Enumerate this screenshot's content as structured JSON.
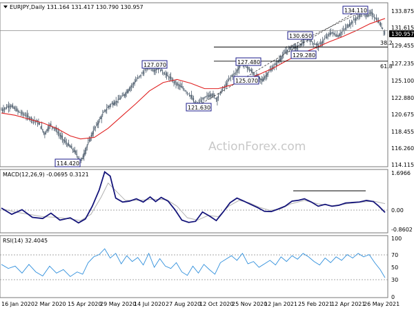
{
  "chart_data": [
    {
      "type": "candlestick",
      "symbol": "EURJPY",
      "timeframe": "Daily",
      "ohlc": {
        "open": "131.164",
        "high": "131.417",
        "low": "130.790",
        "close": "130.957"
      },
      "header_text": "EURJPY,Daily  131.164 131.417 130.790 130.957",
      "ylim": [
        114.115,
        134.9
      ],
      "y_ticks": [
        "133.875",
        "131.615",
        "130.957",
        "129.455",
        "127.235",
        "125.100",
        "122.880",
        "120.675",
        "118.455",
        "116.260",
        "114.115"
      ],
      "x_ticks": [
        "16 Jan 2020",
        "2 Mar 2020",
        "15 Apr 2020",
        "29 May 2020",
        "14 Jul 2020",
        "27 Aug 2020",
        "12 Oct 2020",
        "25 Nov 2020",
        "12 Jan 2021",
        "25 Feb 2021",
        "12 Apr 2021",
        "26 May 2021"
      ],
      "price_path": [
        [
          0,
          121.2
        ],
        [
          12,
          121.8
        ],
        [
          24,
          121.0
        ],
        [
          36,
          120.4
        ],
        [
          48,
          119.8
        ],
        [
          56,
          119.2
        ],
        [
          62,
          118.0
        ],
        [
          70,
          119.3
        ],
        [
          78,
          118.7
        ],
        [
          90,
          117.2
        ],
        [
          100,
          116.3
        ],
        [
          108,
          115.5
        ],
        [
          115,
          114.42
        ],
        [
          121,
          115.8
        ],
        [
          128,
          117.4
        ],
        [
          134,
          118.6
        ],
        [
          142,
          119.9
        ],
        [
          150,
          121.1
        ],
        [
          158,
          121.9
        ],
        [
          168,
          122.4
        ],
        [
          178,
          123.2
        ],
        [
          188,
          124.3
        ],
        [
          198,
          125.4
        ],
        [
          207,
          126.3
        ],
        [
          214,
          127.07
        ],
        [
          220,
          126.4
        ],
        [
          228,
          126.7
        ],
        [
          236,
          126.0
        ],
        [
          244,
          125.4
        ],
        [
          252,
          124.7
        ],
        [
          262,
          124.1
        ],
        [
          270,
          123.5
        ],
        [
          276,
          122.8
        ],
        [
          283,
          121.63
        ],
        [
          290,
          122.4
        ],
        [
          298,
          123.0
        ],
        [
          305,
          123.3
        ],
        [
          312,
          122.6
        ],
        [
          318,
          123.6
        ],
        [
          325,
          124.4
        ],
        [
          332,
          125.5
        ],
        [
          340,
          126.1
        ],
        [
          348,
          127.48
        ],
        [
          356,
          126.8
        ],
        [
          364,
          126.1
        ],
        [
          372,
          125.4
        ],
        [
          378,
          125.07
        ],
        [
          386,
          126.0
        ],
        [
          396,
          127.0
        ],
        [
          405,
          128.0
        ],
        [
          414,
          129.0
        ],
        [
          422,
          129.6
        ],
        [
          428,
          129.28
        ],
        [
          436,
          130.0
        ],
        [
          444,
          130.65
        ],
        [
          452,
          130.0
        ],
        [
          460,
          129.6
        ],
        [
          468,
          130.4
        ],
        [
          478,
          131.4
        ],
        [
          488,
          130.9
        ],
        [
          496,
          131.6
        ],
        [
          504,
          132.4
        ],
        [
          512,
          133.0
        ],
        [
          518,
          133.5
        ],
        [
          524,
          134.11
        ],
        [
          530,
          133.6
        ],
        [
          536,
          133.9
        ],
        [
          542,
          133.3
        ],
        [
          548,
          132.6
        ],
        [
          554,
          131.8
        ],
        [
          557,
          130.957
        ]
      ],
      "moving_average": [
        [
          0,
          120.8
        ],
        [
          20,
          120.5
        ],
        [
          40,
          120.0
        ],
        [
          60,
          119.5
        ],
        [
          80,
          118.8
        ],
        [
          100,
          117.8
        ],
        [
          115,
          117.4
        ],
        [
          135,
          117.6
        ],
        [
          155,
          118.8
        ],
        [
          175,
          120.4
        ],
        [
          195,
          122.0
        ],
        [
          215,
          123.7
        ],
        [
          235,
          124.8
        ],
        [
          255,
          125.2
        ],
        [
          275,
          124.7
        ],
        [
          295,
          124.0
        ],
        [
          315,
          124.0
        ],
        [
          335,
          124.5
        ],
        [
          355,
          125.2
        ],
        [
          375,
          125.9
        ],
        [
          395,
          126.7
        ],
        [
          415,
          127.7
        ],
        [
          435,
          128.6
        ],
        [
          455,
          129.3
        ],
        [
          475,
          130.1
        ],
        [
          495,
          130.8
        ],
        [
          515,
          131.6
        ],
        [
          535,
          132.5
        ],
        [
          557,
          133.2
        ]
      ],
      "price_labels": [
        "134.110",
        "130.650",
        "129.280",
        "127.480",
        "127.070",
        "125.070",
        "121.630",
        "114.420"
      ],
      "retracement_labels": [
        "38.2",
        "61.8"
      ],
      "watermark": "ActionForex.com"
    },
    {
      "type": "line",
      "indicator": "MACD",
      "title": "MACD(12,26,9) -0.0695 0.3121",
      "y_ticks": [
        "1.6966",
        "0.00",
        "-0.8602"
      ],
      "ylim": [
        -0.8602,
        1.6966
      ],
      "series": [
        {
          "values": [
            [
              0,
              0.12
            ],
            [
              15,
              -0.15
            ],
            [
              30,
              0.05
            ],
            [
              45,
              -0.28
            ],
            [
              60,
              -0.33
            ],
            [
              72,
              -0.1
            ],
            [
              85,
              -0.4
            ],
            [
              100,
              -0.3
            ],
            [
              112,
              -0.52
            ],
            [
              122,
              -0.35
            ],
            [
              132,
              0.2
            ],
            [
              142,
              0.9
            ],
            [
              150,
              1.68
            ],
            [
              158,
              1.5
            ],
            [
              166,
              0.55
            ],
            [
              176,
              0.38
            ],
            [
              186,
              0.42
            ],
            [
              196,
              0.52
            ],
            [
              206,
              0.38
            ],
            [
              216,
              0.6
            ],
            [
              224,
              0.4
            ],
            [
              232,
              0.58
            ],
            [
              242,
              0.42
            ],
            [
              252,
              0.05
            ],
            [
              262,
              -0.4
            ],
            [
              272,
              -0.5
            ],
            [
              282,
              -0.45
            ],
            [
              292,
              -0.05
            ],
            [
              302,
              -0.22
            ],
            [
              312,
              -0.42
            ],
            [
              322,
              -0.05
            ],
            [
              332,
              0.35
            ],
            [
              342,
              0.55
            ],
            [
              352,
              0.42
            ],
            [
              362,
              0.28
            ],
            [
              372,
              0.14
            ],
            [
              382,
              -0.02
            ],
            [
              392,
              -0.03
            ],
            [
              402,
              0.08
            ],
            [
              412,
              0.2
            ],
            [
              422,
              0.42
            ],
            [
              432,
              0.46
            ],
            [
              440,
              0.52
            ],
            [
              450,
              0.38
            ],
            [
              460,
              0.2
            ],
            [
              470,
              0.28
            ],
            [
              480,
              0.2
            ],
            [
              490,
              0.24
            ],
            [
              500,
              0.34
            ],
            [
              510,
              0.36
            ],
            [
              520,
              0.38
            ],
            [
              530,
              0.45
            ],
            [
              540,
              0.4
            ],
            [
              548,
              0.2
            ],
            [
              557,
              -0.07
            ]
          ]
        },
        {
          "values": [
            [
              0,
              0.1
            ],
            [
              20,
              -0.05
            ],
            [
              40,
              -0.15
            ],
            [
              60,
              -0.25
            ],
            [
              80,
              -0.28
            ],
            [
              100,
              -0.35
            ],
            [
              115,
              -0.42
            ],
            [
              130,
              -0.15
            ],
            [
              145,
              0.6
            ],
            [
              155,
              1.2
            ],
            [
              165,
              0.9
            ],
            [
              180,
              0.45
            ],
            [
              200,
              0.45
            ],
            [
              220,
              0.5
            ],
            [
              240,
              0.48
            ],
            [
              255,
              0.2
            ],
            [
              270,
              -0.3
            ],
            [
              285,
              -0.4
            ],
            [
              300,
              -0.2
            ],
            [
              315,
              -0.25
            ],
            [
              330,
              0.2
            ],
            [
              345,
              0.45
            ],
            [
              360,
              0.35
            ],
            [
              375,
              0.15
            ],
            [
              390,
              0.02
            ],
            [
              405,
              0.08
            ],
            [
              420,
              0.3
            ],
            [
              440,
              0.45
            ],
            [
              460,
              0.3
            ],
            [
              480,
              0.22
            ],
            [
              500,
              0.3
            ],
            [
              520,
              0.37
            ],
            [
              540,
              0.42
            ],
            [
              557,
              0.31
            ]
          ]
        }
      ]
    },
    {
      "type": "line",
      "indicator": "RSI",
      "title": "RSI(14) 32.4045",
      "y_ticks": [
        "100",
        "70",
        "50",
        "30",
        "0"
      ],
      "ylim": [
        0,
        100
      ],
      "series": [
        {
          "values": [
            [
              0,
              55
            ],
            [
              10,
              48
            ],
            [
              20,
              52
            ],
            [
              30,
              40
            ],
            [
              40,
              55
            ],
            [
              50,
              42
            ],
            [
              60,
              35
            ],
            [
              70,
              52
            ],
            [
              80,
              40
            ],
            [
              90,
              46
            ],
            [
              100,
              34
            ],
            [
              110,
              42
            ],
            [
              118,
              38
            ],
            [
              126,
              58
            ],
            [
              134,
              68
            ],
            [
              142,
              72
            ],
            [
              150,
              82
            ],
            [
              158,
              66
            ],
            [
              166,
              74
            ],
            [
              174,
              56
            ],
            [
              182,
              70
            ],
            [
              190,
              60
            ],
            [
              198,
              67
            ],
            [
              206,
              54
            ],
            [
              214,
              74
            ],
            [
              222,
              50
            ],
            [
              230,
              65
            ],
            [
              238,
              52
            ],
            [
              246,
              48
            ],
            [
              254,
              58
            ],
            [
              262,
              42
            ],
            [
              270,
              36
            ],
            [
              278,
              52
            ],
            [
              286,
              40
            ],
            [
              294,
              55
            ],
            [
              302,
              46
            ],
            [
              310,
              38
            ],
            [
              318,
              58
            ],
            [
              326,
              64
            ],
            [
              334,
              70
            ],
            [
              342,
              62
            ],
            [
              350,
              74
            ],
            [
              358,
              56
            ],
            [
              366,
              60
            ],
            [
              374,
              50
            ],
            [
              382,
              56
            ],
            [
              390,
              62
            ],
            [
              398,
              54
            ],
            [
              406,
              68
            ],
            [
              414,
              60
            ],
            [
              422,
              70
            ],
            [
              430,
              64
            ],
            [
              438,
              74
            ],
            [
              446,
              68
            ],
            [
              454,
              60
            ],
            [
              462,
              54
            ],
            [
              470,
              66
            ],
            [
              478,
              58
            ],
            [
              486,
              68
            ],
            [
              494,
              62
            ],
            [
              502,
              72
            ],
            [
              510,
              66
            ],
            [
              518,
              74
            ],
            [
              526,
              68
            ],
            [
              534,
              72
            ],
            [
              542,
              58
            ],
            [
              550,
              46
            ],
            [
              557,
              32
            ]
          ]
        }
      ]
    }
  ]
}
